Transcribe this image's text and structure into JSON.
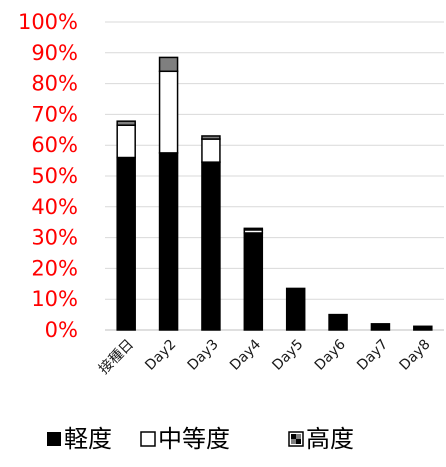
{
  "chart_data": {
    "type": "bar",
    "stacked": true,
    "categories": [
      "接種日",
      "Day2",
      "Day3",
      "Day4",
      "Day5",
      "Day6",
      "Day7",
      "Day8"
    ],
    "series": [
      {
        "name": "軽度",
        "values": [
          56,
          57.5,
          54.5,
          31.5,
          13.5,
          5,
          2,
          1.2
        ],
        "color": "#000000",
        "fill": "solid"
      },
      {
        "name": "中等度",
        "values": [
          10.5,
          26.5,
          7.5,
          1,
          0,
          0,
          0,
          0
        ],
        "color": "#ffffff",
        "fill": "outline"
      },
      {
        "name": "高度",
        "values": [
          1.3,
          4.5,
          1,
          0.5,
          0,
          0,
          0,
          0
        ],
        "color": "#808080",
        "fill": "gray"
      }
    ],
    "y_ticks": [
      "0%",
      "10%",
      "20%",
      "30%",
      "40%",
      "50%",
      "60%",
      "70%",
      "80%",
      "90%",
      "100%"
    ],
    "ylim": [
      0,
      100
    ],
    "grid": true,
    "legend_position": "bottom",
    "colors": {
      "tick_label": "#ff0000",
      "gridline": "#d9d9d9"
    }
  }
}
